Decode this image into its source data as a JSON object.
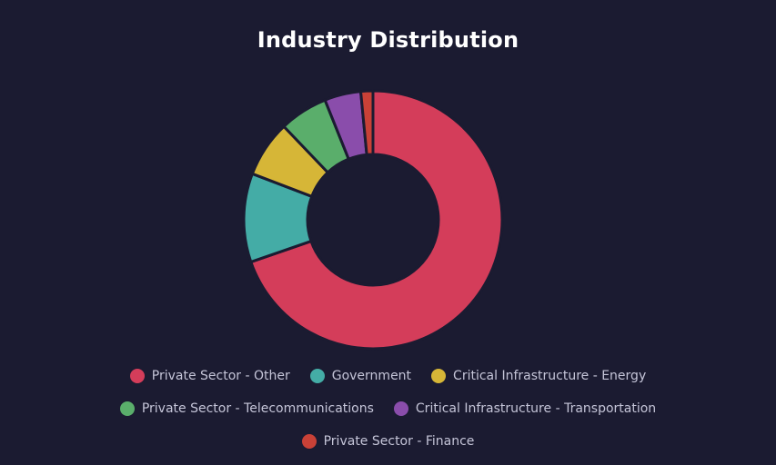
{
  "chart_data": {
    "type": "pie",
    "title": "Industry Distribution",
    "categories": [
      "Private Sector - Other",
      "Government",
      "Critical Infrastructure - Energy",
      "Private Sector - Telecommunications",
      "Critical Infrastructure - Transportation",
      "Private Sector - Finance"
    ],
    "values": [
      69,
      11,
      7,
      6,
      4.5,
      1.5
    ],
    "colors": [
      "#d43d5a",
      "#44aca6",
      "#d6b637",
      "#5aae6b",
      "#8a4dab",
      "#c94137"
    ],
    "legend_position": "bottom"
  }
}
